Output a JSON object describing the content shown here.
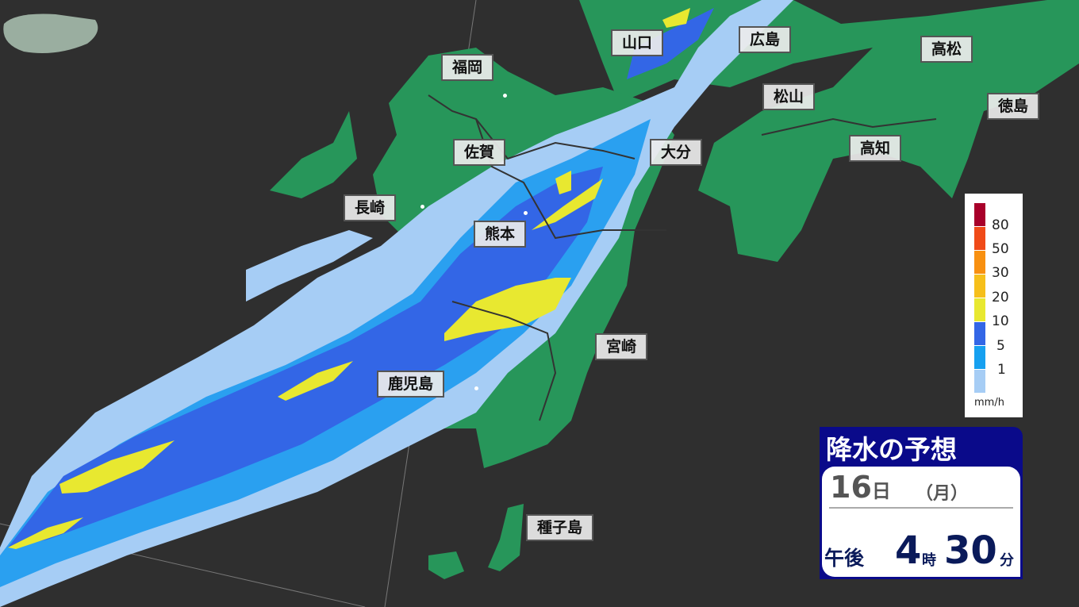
{
  "colors": {
    "background": "#2f2f2f",
    "land": "#27965a",
    "rain_1": "#a6cdf5",
    "rain_1_5": "#2aa0f0",
    "rain_5_10": "#3366e6",
    "rain_10_20": "#e8e830",
    "panel_header": "#0a0a8a"
  },
  "cities": [
    {
      "name": "福岡"
    },
    {
      "name": "山口"
    },
    {
      "name": "広島"
    },
    {
      "name": "高松"
    },
    {
      "name": "松山"
    },
    {
      "name": "徳島"
    },
    {
      "name": "佐賀"
    },
    {
      "name": "大分"
    },
    {
      "name": "高知"
    },
    {
      "name": "長崎"
    },
    {
      "name": "熊本"
    },
    {
      "name": "宮崎"
    },
    {
      "name": "鹿児島"
    },
    {
      "name": "種子島"
    }
  ],
  "legend": {
    "levels": [
      {
        "label": "80",
        "color": "#a8002a"
      },
      {
        "label": "50",
        "color": "#f04a18"
      },
      {
        "label": "30",
        "color": "#f89010"
      },
      {
        "label": "20",
        "color": "#f6bf1a"
      },
      {
        "label": "10",
        "color": "#e8e830"
      },
      {
        "label": "5",
        "color": "#3366e6"
      },
      {
        "label": "1",
        "color": "#16a0f0"
      },
      {
        "label": "",
        "color": "#a6cdf5"
      }
    ],
    "unit": "mm/h"
  },
  "info": {
    "title": "降水の予想",
    "day": "16",
    "day_unit": "日",
    "weekday": "（月）",
    "ampm": "午後",
    "hour": "4",
    "hour_unit": "時",
    "minute": "30",
    "minute_unit": "分"
  }
}
